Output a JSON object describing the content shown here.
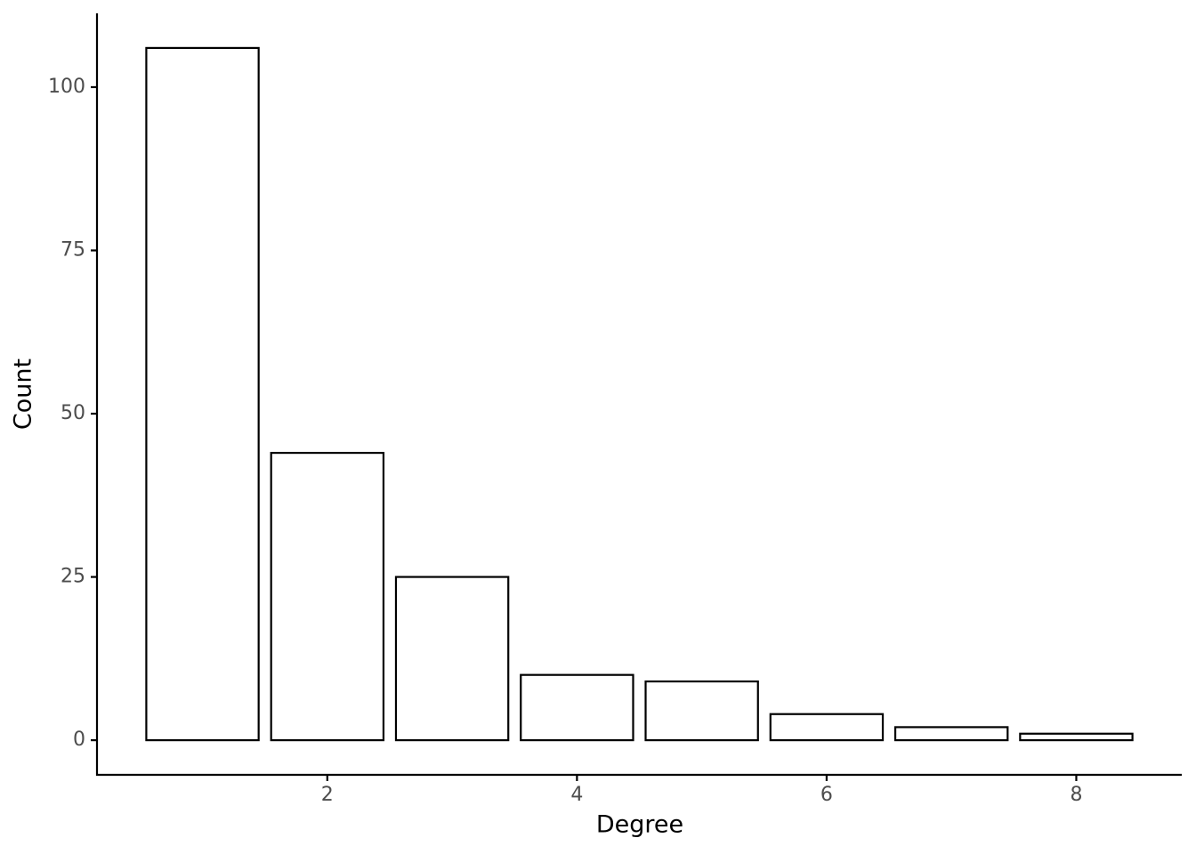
{
  "chart_data": {
    "type": "bar",
    "x_label": "Degree",
    "y_label": "Count",
    "x": [
      1,
      2,
      3,
      4,
      5,
      6,
      7,
      8
    ],
    "values": [
      106,
      44,
      25,
      10,
      9,
      4,
      2,
      1
    ],
    "color": "#ffffff",
    "edge_color": "#000000",
    "xlim": [
      0.155,
      8.845
    ],
    "xticks": [
      2,
      4,
      6,
      8
    ],
    "ylim": [
      -5.3,
      111.3
    ],
    "yticks": [
      0,
      25,
      50,
      75,
      100
    ],
    "grid": false
  }
}
